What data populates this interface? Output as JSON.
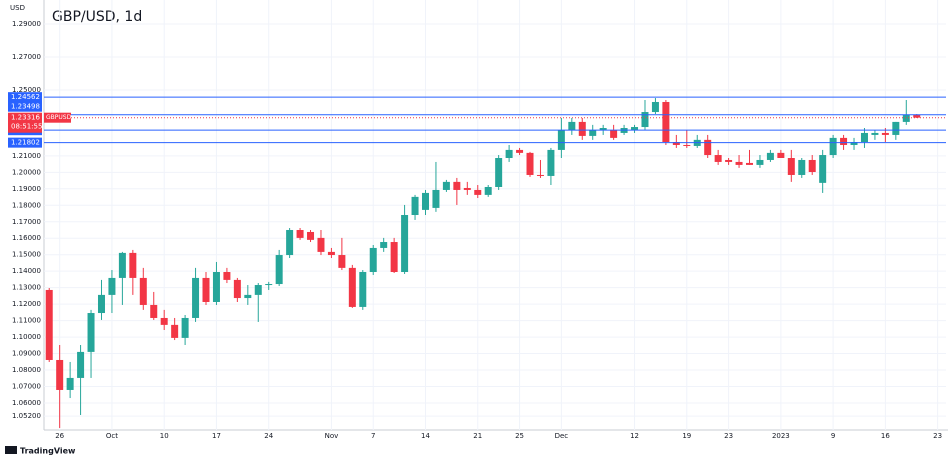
{
  "chart_data": {
    "type": "candlestick",
    "title": "GBP/USD, 1d",
    "y_axis_label": "USD",
    "watermark": "TradingView",
    "up_color": "#26a69a",
    "down_color": "#f23645",
    "line_color": "#2962ff",
    "grid": true,
    "open": [
      1.1286,
      1.0861,
      1.0679,
      1.0752,
      1.091,
      1.1146,
      1.1256,
      1.1359,
      1.1511,
      1.1359,
      1.1195,
      1.1116,
      1.1074,
      1.0995,
      1.1116,
      1.1359,
      1.1213,
      1.1395,
      1.1347,
      1.1237,
      1.1256,
      1.1316,
      1.1322,
      1.1498,
      1.165,
      1.1638,
      1.1602,
      1.1517,
      1.1498,
      1.142,
      1.1183,
      1.1395,
      1.1541,
      1.1577,
      1.1395,
      1.1741,
      1.1772,
      1.1784,
      1.1893,
      1.1942,
      1.1905,
      1.1893,
      1.1863,
      1.1911,
      1.2087,
      1.2136,
      1.2118,
      1.1984,
      1.1978,
      1.2136,
      1.2257,
      1.2306,
      1.2221,
      1.2257,
      1.2257,
      1.2239,
      1.2257,
      1.2275,
      1.2366,
      1.2427,
      1.2184,
      1.2166,
      1.216,
      1.2197,
      1.2105,
      1.2075,
      1.2063,
      1.2057,
      1.2045,
      1.2075,
      1.2118,
      1.2087,
      1.1984,
      1.2075,
      1.1936,
      1.2105,
      1.2209,
      1.2166,
      1.2184,
      1.2227,
      1.2239,
      1.2227,
      1.2306,
      1.2348
    ],
    "high": [
      1.1298,
      1.0952,
      1.0849,
      1.0952,
      1.1165,
      1.1347,
      1.1407,
      1.1517,
      1.1529,
      1.142,
      1.1274,
      1.1165,
      1.1116,
      1.1134,
      1.142,
      1.1395,
      1.1456,
      1.142,
      1.1359,
      1.1316,
      1.1328,
      1.1335,
      1.1529,
      1.1662,
      1.1662,
      1.165,
      1.165,
      1.1541,
      1.1602,
      1.1438,
      1.1407,
      1.1559,
      1.1602,
      1.1602,
      1.1802,
      1.1863,
      1.1893,
      1.2063,
      1.1954,
      1.1966,
      1.1942,
      1.1923,
      1.1923,
      1.2105,
      1.2166,
      1.2148,
      1.2124,
      1.2075,
      1.2148,
      1.233,
      1.233,
      1.233,
      1.2288,
      1.2288,
      1.2288,
      1.2288,
      1.2288,
      1.2439,
      1.2451,
      1.2439,
      1.2227,
      1.2257,
      1.2227,
      1.2227,
      1.2136,
      1.2087,
      1.2105,
      1.2136,
      1.2105,
      1.2136,
      1.2136,
      1.2136,
      1.2087,
      1.2105,
      1.2136,
      1.2227,
      1.2227,
      1.2209,
      1.2269,
      1.2257,
      1.2269,
      1.2306,
      1.2439,
      1.2354
    ],
    "low": [
      1.0849,
      1.0448,
      1.063,
      1.0527,
      1.0752,
      1.1104,
      1.1146,
      1.1195,
      1.1256,
      1.1165,
      1.1104,
      1.1043,
      1.0982,
      1.0952,
      1.1092,
      1.1195,
      1.1195,
      1.1328,
      1.1213,
      1.1195,
      1.1092,
      1.1286,
      1.131,
      1.148,
      1.159,
      1.1577,
      1.1498,
      1.148,
      1.1407,
      1.1177,
      1.1165,
      1.1377,
      1.1517,
      1.1389,
      1.1383,
      1.1711,
      1.1741,
      1.176,
      1.1881,
      1.1802,
      1.1863,
      1.1844,
      1.1851,
      1.1893,
      1.2063,
      1.2105,
      1.1972,
      1.1966,
      1.1923,
      1.2087,
      1.2227,
      1.2197,
      1.2197,
      1.2227,
      1.2197,
      1.2227,
      1.2239,
      1.2257,
      1.2354,
      1.2166,
      1.2148,
      1.2148,
      1.2148,
      1.2087,
      1.2045,
      1.2045,
      1.2027,
      1.2045,
      1.2027,
      1.2063,
      1.2087,
      1.1942,
      1.1966,
      1.1984,
      1.1875,
      1.2087,
      1.2136,
      1.2136,
      1.2148,
      1.2197,
      1.2184,
      1.2197,
      1.2288,
      1.233
    ],
    "close": [
      1.0861,
      1.0679,
      1.0752,
      1.091,
      1.1146,
      1.1256,
      1.1359,
      1.1511,
      1.1359,
      1.1195,
      1.1116,
      1.1074,
      1.0995,
      1.1116,
      1.1359,
      1.1213,
      1.1395,
      1.1347,
      1.1237,
      1.1256,
      1.1316,
      1.1322,
      1.1498,
      1.165,
      1.1602,
      1.159,
      1.1517,
      1.1498,
      1.142,
      1.1183,
      1.1395,
      1.1541,
      1.1577,
      1.1395,
      1.1741,
      1.1851,
      1.1875,
      1.1893,
      1.1942,
      1.1893,
      1.1893,
      1.1863,
      1.1911,
      1.2087,
      1.2136,
      1.2118,
      1.1984,
      1.1978,
      1.2136,
      1.2257,
      1.2306,
      1.2221,
      1.2257,
      1.2269,
      1.2209,
      1.2269,
      1.2275,
      1.2366,
      1.2427,
      1.2184,
      1.2166,
      1.216,
      1.2197,
      1.2105,
      1.2063,
      1.2063,
      1.2045,
      1.2045,
      1.2075,
      1.2118,
      1.2087,
      1.1984,
      1.2075,
      1.2002,
      1.2105,
      1.2209,
      1.2166,
      1.2184,
      1.2239,
      1.2239,
      1.2227,
      1.2306,
      1.2348,
      1.2332
    ],
    "xlim": [
      -0.5,
      85.8
    ],
    "xticks": [
      {
        "value": 1,
        "label": "26"
      },
      {
        "value": 6,
        "label": "Oct"
      },
      {
        "value": 11,
        "label": "10"
      },
      {
        "value": 16,
        "label": "17"
      },
      {
        "value": 21,
        "label": "24"
      },
      {
        "value": 27,
        "label": "Nov"
      },
      {
        "value": 31,
        "label": "7"
      },
      {
        "value": 36,
        "label": "14"
      },
      {
        "value": 41,
        "label": "21"
      },
      {
        "value": 45,
        "label": "25"
      },
      {
        "value": 49,
        "label": "Dec"
      },
      {
        "value": 56,
        "label": "12"
      },
      {
        "value": 61,
        "label": "19"
      },
      {
        "value": 65,
        "label": "23"
      },
      {
        "value": 70,
        "label": "2023"
      },
      {
        "value": 75,
        "label": "9"
      },
      {
        "value": 80,
        "label": "16"
      },
      {
        "value": 85,
        "label": "23"
      }
    ],
    "ylim": [
      1.0436,
      1.3046
    ],
    "yticks": [
      {
        "value": 1.29,
        "label": "1.29000"
      },
      {
        "value": 1.27,
        "label": "1.27000"
      },
      {
        "value": 1.25,
        "label": "1.25000"
      },
      {
        "value": 1.21,
        "label": "1.21000"
      },
      {
        "value": 1.2,
        "label": "1.20000"
      },
      {
        "value": 1.19,
        "label": "1.19000"
      },
      {
        "value": 1.18,
        "label": "1.18000"
      },
      {
        "value": 1.17,
        "label": "1.17000"
      },
      {
        "value": 1.16,
        "label": "1.16000"
      },
      {
        "value": 1.15,
        "label": "1.15000"
      },
      {
        "value": 1.14,
        "label": "1.14000"
      },
      {
        "value": 1.13,
        "label": "1.13000"
      },
      {
        "value": 1.12,
        "label": "1.12000"
      },
      {
        "value": 1.11,
        "label": "1.11000"
      },
      {
        "value": 1.1,
        "label": "1.10000"
      },
      {
        "value": 1.09,
        "label": "1.09000"
      },
      {
        "value": 1.08,
        "label": "1.08000"
      },
      {
        "value": 1.07,
        "label": "1.07000"
      },
      {
        "value": 1.06,
        "label": "1.06000"
      },
      {
        "value": 1.052,
        "label": "1.05200"
      }
    ],
    "hlines": [
      1.24562,
      1.23498,
      1.22559,
      1.21802
    ],
    "last_price": {
      "value": 1.23316,
      "symbol": "GBPUSD",
      "countdown": "08:51:55"
    }
  }
}
